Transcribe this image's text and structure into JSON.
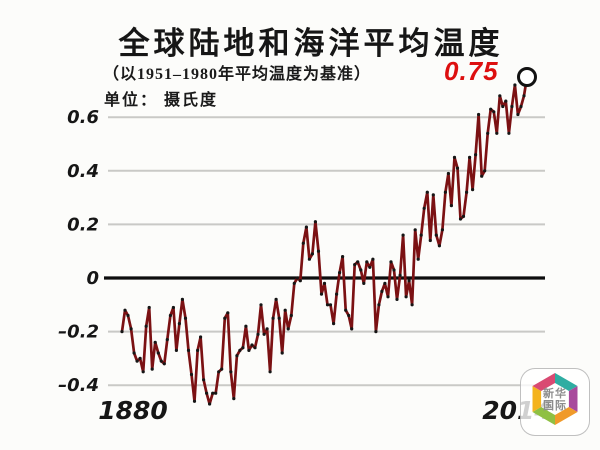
{
  "header": {
    "title": "全球陆地和海洋平均温度",
    "subtitle": "（以1951–1980年平均温度为基准）",
    "unit_label": "单位： 摄氏度"
  },
  "annotation": {
    "peak_value_label": "0.75",
    "color": "#dd0f0f"
  },
  "chart_data": {
    "type": "line",
    "title": "全球陆地和海洋平均温度",
    "subtitle": "（以1951–1980年平均温度为基准）",
    "ylabel": "摄氏度",
    "x_start_year": 1880,
    "x_end_year": 2014,
    "xtick_labels": [
      "1880",
      "2014"
    ],
    "ytick_values": [
      0.6,
      0.4,
      0.2,
      0,
      -0.2,
      -0.4
    ],
    "ytick_labels": [
      "0.6",
      "0.4",
      "0.2",
      "0",
      "–0.2",
      "–0.4"
    ],
    "ylim": [
      -0.55,
      0.85
    ],
    "grid": true,
    "legend": "none",
    "line_color": "#7b1113",
    "marker_color": "#161616",
    "endpoint": {
      "year": 2014,
      "value": 0.75,
      "marker": "open-circle"
    },
    "values": [
      -0.2,
      -0.12,
      -0.14,
      -0.19,
      -0.28,
      -0.31,
      -0.3,
      -0.35,
      -0.18,
      -0.11,
      -0.34,
      -0.24,
      -0.28,
      -0.31,
      -0.32,
      -0.23,
      -0.14,
      -0.11,
      -0.27,
      -0.17,
      -0.08,
      -0.15,
      -0.27,
      -0.36,
      -0.46,
      -0.27,
      -0.22,
      -0.38,
      -0.43,
      -0.47,
      -0.43,
      -0.43,
      -0.35,
      -0.34,
      -0.15,
      -0.13,
      -0.35,
      -0.45,
      -0.29,
      -0.27,
      -0.26,
      -0.18,
      -0.27,
      -0.25,
      -0.26,
      -0.21,
      -0.1,
      -0.21,
      -0.19,
      -0.35,
      -0.15,
      -0.08,
      -0.15,
      -0.28,
      -0.12,
      -0.19,
      -0.14,
      -0.02,
      0.0,
      -0.01,
      0.13,
      0.19,
      0.07,
      0.09,
      0.21,
      0.1,
      -0.06,
      -0.02,
      -0.1,
      -0.1,
      -0.17,
      -0.06,
      0.02,
      0.08,
      -0.12,
      -0.14,
      -0.19,
      0.05,
      0.06,
      0.03,
      -0.02,
      0.06,
      0.04,
      0.07,
      -0.2,
      -0.1,
      -0.05,
      -0.02,
      -0.07,
      0.06,
      0.03,
      -0.08,
      0.01,
      0.16,
      -0.07,
      -0.01,
      -0.1,
      0.18,
      0.07,
      0.16,
      0.26,
      0.32,
      0.14,
      0.31,
      0.16,
      0.12,
      0.18,
      0.32,
      0.39,
      0.27,
      0.45,
      0.41,
      0.22,
      0.23,
      0.32,
      0.45,
      0.33,
      0.46,
      0.61,
      0.38,
      0.4,
      0.54,
      0.63,
      0.62,
      0.54,
      0.68,
      0.64,
      0.66,
      0.54,
      0.64,
      0.72,
      0.61,
      0.64,
      0.68,
      0.75
    ]
  },
  "logo": {
    "text_line1": "新华",
    "text_line2": "国际",
    "ring_colors": [
      "#2fada2",
      "#a84a9c",
      "#f09a2a",
      "#8fc043",
      "#f4b31c",
      "#d94a72"
    ]
  }
}
